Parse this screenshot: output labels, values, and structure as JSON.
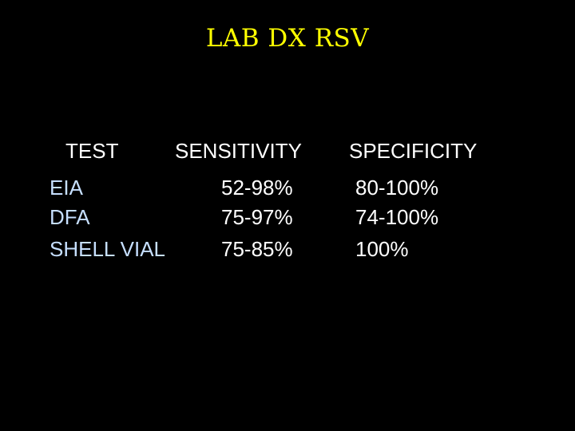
{
  "slide": {
    "title": "LAB DX RSV",
    "headers": {
      "test": "TEST",
      "sensitivity": "SENSITIVITY",
      "specificity": "SPECIFICITY"
    },
    "rows": [
      {
        "test": "EIA",
        "sensitivity": "52-98%",
        "specificity": "80-100%"
      },
      {
        "test": "DFA",
        "sensitivity": "75-97%",
        "specificity": "74-100%"
      },
      {
        "test": "SHELL VIAL",
        "sensitivity": "75-85%",
        "specificity": "100%"
      }
    ]
  },
  "colors": {
    "background": "#000000",
    "title": "#FFFF00",
    "header_text": "#FFFFFF",
    "test_name_text": "#C6DFFF",
    "value_text": "#FFFFFF"
  }
}
